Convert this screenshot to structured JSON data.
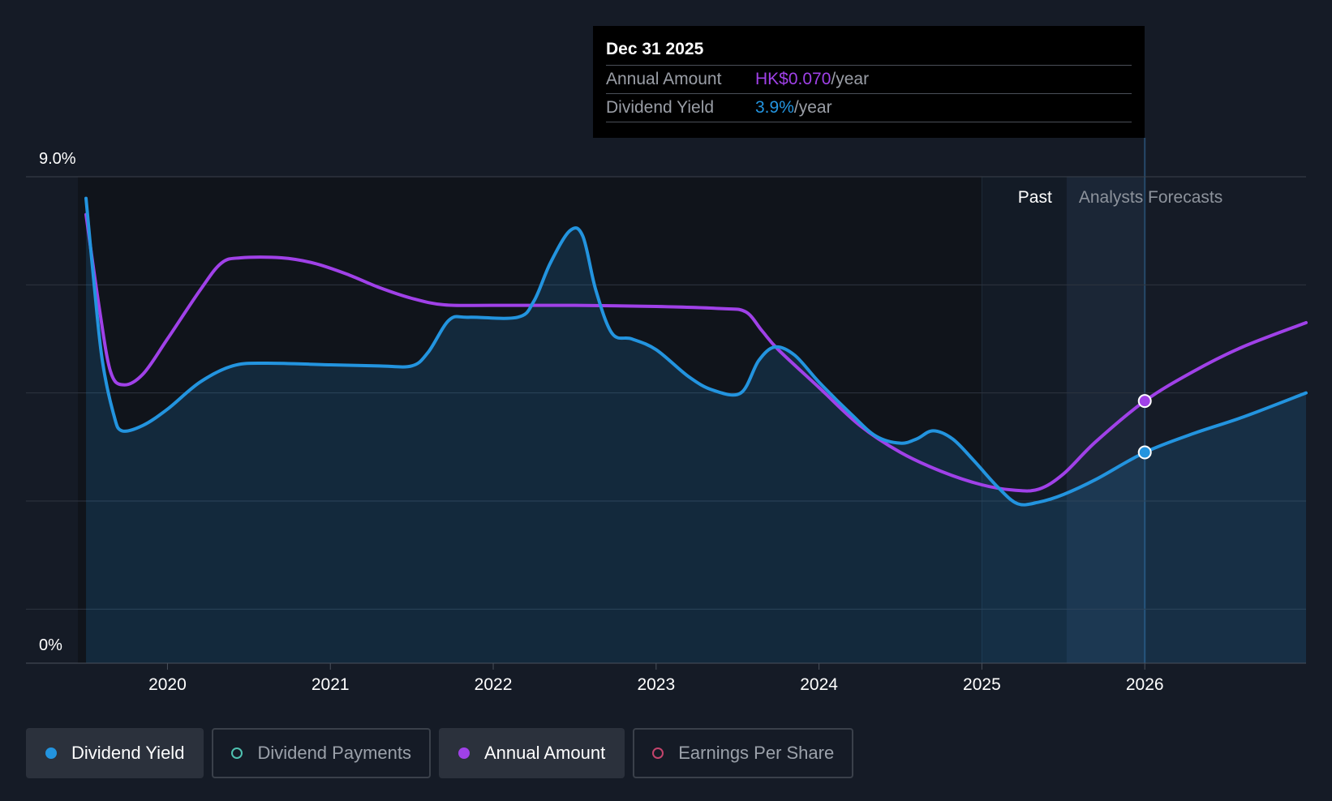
{
  "colors": {
    "background": "#151b26",
    "dividend_yield": "#2394df",
    "annual_amount": "#a041e8",
    "dividend_payments": "#4fc1b0",
    "earnings_per_share": "#c3446c",
    "gridline": "#2e3540",
    "label": "#ffffff",
    "muted_label": "#9a9ea6"
  },
  "tooltip": {
    "date": "Dec 31 2025",
    "rows": [
      {
        "label": "Annual Amount",
        "value": "HK$0.070",
        "unit": "/year"
      },
      {
        "label": "Dividend Yield",
        "value": "3.9%",
        "unit": "/year"
      }
    ]
  },
  "legend": [
    {
      "label": "Dividend Yield",
      "icon": "filled-circle",
      "active": true
    },
    {
      "label": "Dividend Payments",
      "icon": "hollow-circle",
      "active": false
    },
    {
      "label": "Annual Amount",
      "icon": "filled-circle",
      "active": true
    },
    {
      "label": "Earnings Per Share",
      "icon": "hollow-circle",
      "active": false
    }
  ],
  "chart_data": {
    "type": "area",
    "y_tick_labels": [
      "9.0%",
      "0%"
    ],
    "ylim": [
      0,
      9.0
    ],
    "xlim": [
      2019.45,
      2026.99
    ],
    "x_tick_labels": [
      "2020",
      "2021",
      "2022",
      "2023",
      "2024",
      "2025",
      "2026"
    ],
    "x_ticks": [
      2020,
      2021,
      2022,
      2023,
      2024,
      2025,
      2026
    ],
    "grid": true,
    "region_labels": {
      "past": "Past",
      "forecast": "Analysts Forecasts"
    },
    "past_shade_start": 2025.0,
    "forecast_start": 2025.52,
    "highlight_x": 2026.0,
    "series": [
      {
        "name": "Dividend Yield",
        "fill": true,
        "points": [
          [
            2019.5,
            8.6
          ],
          [
            2019.55,
            7.0
          ],
          [
            2019.6,
            5.6
          ],
          [
            2019.67,
            4.6
          ],
          [
            2019.72,
            4.3
          ],
          [
            2019.85,
            4.4
          ],
          [
            2020.0,
            4.7
          ],
          [
            2020.2,
            5.2
          ],
          [
            2020.4,
            5.5
          ],
          [
            2020.6,
            5.55
          ],
          [
            2021.0,
            5.52
          ],
          [
            2021.3,
            5.5
          ],
          [
            2021.5,
            5.5
          ],
          [
            2021.6,
            5.75
          ],
          [
            2021.73,
            6.35
          ],
          [
            2021.85,
            6.4
          ],
          [
            2022.15,
            6.4
          ],
          [
            2022.25,
            6.7
          ],
          [
            2022.35,
            7.4
          ],
          [
            2022.47,
            8.0
          ],
          [
            2022.55,
            7.9
          ],
          [
            2022.63,
            6.9
          ],
          [
            2022.73,
            6.1
          ],
          [
            2022.85,
            6.0
          ],
          [
            2023.0,
            5.8
          ],
          [
            2023.2,
            5.3
          ],
          [
            2023.35,
            5.05
          ],
          [
            2023.52,
            5.0
          ],
          [
            2023.63,
            5.6
          ],
          [
            2023.73,
            5.85
          ],
          [
            2023.85,
            5.7
          ],
          [
            2024.0,
            5.2
          ],
          [
            2024.2,
            4.6
          ],
          [
            2024.35,
            4.2
          ],
          [
            2024.5,
            4.07
          ],
          [
            2024.6,
            4.15
          ],
          [
            2024.7,
            4.3
          ],
          [
            2024.82,
            4.15
          ],
          [
            2024.95,
            3.75
          ],
          [
            2025.1,
            3.25
          ],
          [
            2025.22,
            2.95
          ],
          [
            2025.35,
            2.98
          ],
          [
            2025.5,
            3.12
          ],
          [
            2025.7,
            3.4
          ],
          [
            2026.0,
            3.9
          ],
          [
            2026.3,
            4.25
          ],
          [
            2026.6,
            4.55
          ],
          [
            2026.99,
            5.0
          ]
        ]
      },
      {
        "name": "Annual Amount",
        "fill": false,
        "points": [
          [
            2019.5,
            8.3
          ],
          [
            2019.58,
            6.6
          ],
          [
            2019.65,
            5.4
          ],
          [
            2019.73,
            5.15
          ],
          [
            2019.85,
            5.35
          ],
          [
            2020.0,
            6.0
          ],
          [
            2020.2,
            6.9
          ],
          [
            2020.33,
            7.4
          ],
          [
            2020.45,
            7.5
          ],
          [
            2020.7,
            7.5
          ],
          [
            2020.9,
            7.4
          ],
          [
            2021.1,
            7.2
          ],
          [
            2021.3,
            6.95
          ],
          [
            2021.5,
            6.75
          ],
          [
            2021.7,
            6.63
          ],
          [
            2022.0,
            6.62
          ],
          [
            2022.5,
            6.62
          ],
          [
            2023.0,
            6.6
          ],
          [
            2023.4,
            6.56
          ],
          [
            2023.55,
            6.5
          ],
          [
            2023.65,
            6.15
          ],
          [
            2023.75,
            5.8
          ],
          [
            2024.0,
            5.1
          ],
          [
            2024.25,
            4.4
          ],
          [
            2024.5,
            3.9
          ],
          [
            2024.75,
            3.55
          ],
          [
            2025.0,
            3.3
          ],
          [
            2025.2,
            3.2
          ],
          [
            2025.35,
            3.22
          ],
          [
            2025.5,
            3.5
          ],
          [
            2025.7,
            4.1
          ],
          [
            2026.0,
            4.85
          ],
          [
            2026.3,
            5.4
          ],
          [
            2026.6,
            5.85
          ],
          [
            2026.99,
            6.3
          ]
        ]
      }
    ]
  }
}
